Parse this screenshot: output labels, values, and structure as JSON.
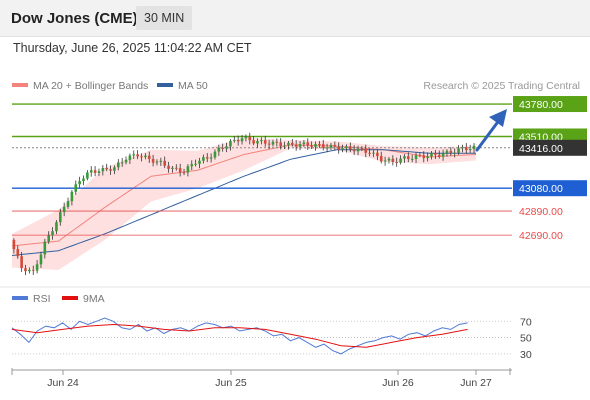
{
  "header": {
    "title": "Dow Jones (CME)",
    "timeframe": "30 MIN"
  },
  "timestamp": "Thursday, June 26, 2025 11:04:22 AM CET",
  "legend": {
    "items": [
      {
        "label": "MA 20 + Bollinger Bands",
        "color": "#f4837d"
      },
      {
        "label": "MA 50",
        "color": "#35609e"
      }
    ],
    "credit": "Research © 2025 Trading Central"
  },
  "rsi_legend": {
    "items": [
      {
        "label": "RSI",
        "color": "#4f7ad6"
      },
      {
        "label": "9MA",
        "color": "#e31010"
      }
    ]
  },
  "chart_data": [
    {
      "type": "candlestick",
      "levels": [
        {
          "label": "43780.00",
          "value": 43780.0,
          "color": "#5aa317",
          "kind": "resistance"
        },
        {
          "label": "43510.00",
          "value": 43510.0,
          "color": "#5aa317",
          "kind": "resistance"
        },
        {
          "label": "43416.00",
          "value": 43416.0,
          "color": "#333333",
          "kind": "last"
        },
        {
          "label": "43080.00",
          "value": 43080.0,
          "color": "#1e5fd3",
          "kind": "pivot"
        },
        {
          "label": "42890.00",
          "value": 42890.0,
          "color": "#e84c4c",
          "kind": "support"
        },
        {
          "label": "42690.00",
          "value": 42690.0,
          "color": "#e84c4c",
          "kind": "support"
        }
      ],
      "x_ticks": [
        "Jun 24",
        "Jun 25",
        "Jun 26",
        "Jun 27"
      ],
      "price_path": [
        [
          0,
          42650
        ],
        [
          3,
          42420
        ],
        [
          6,
          42380
        ],
        [
          9,
          42620
        ],
        [
          12,
          42800
        ],
        [
          15,
          42990
        ],
        [
          18,
          43150
        ],
        [
          21,
          43220
        ],
        [
          24,
          43230
        ],
        [
          27,
          43250
        ],
        [
          30,
          43330
        ],
        [
          33,
          43360
        ],
        [
          36,
          43320
        ],
        [
          39,
          43290
        ],
        [
          42,
          43240
        ],
        [
          45,
          43220
        ],
        [
          48,
          43300
        ],
        [
          51,
          43330
        ],
        [
          54,
          43400
        ],
        [
          57,
          43460
        ],
        [
          60,
          43500
        ],
        [
          63,
          43470
        ],
        [
          66,
          43460
        ],
        [
          69,
          43450
        ],
        [
          72,
          43440
        ],
        [
          75,
          43445
        ],
        [
          78,
          43440
        ],
        [
          81,
          43430
        ],
        [
          84,
          43420
        ],
        [
          87,
          43410
        ],
        [
          90,
          43400
        ],
        [
          93,
          43380
        ],
        [
          96,
          43320
        ],
        [
          99,
          43300
        ],
        [
          102,
          43330
        ],
        [
          105,
          43340
        ],
        [
          108,
          43350
        ],
        [
          111,
          43360
        ],
        [
          114,
          43380
        ],
        [
          117,
          43410
        ],
        [
          120,
          43416
        ]
      ],
      "ma_path": [
        [
          0,
          42600
        ],
        [
          12,
          42640
        ],
        [
          24,
          42920
        ],
        [
          36,
          43180
        ],
        [
          48,
          43230
        ],
        [
          60,
          43360
        ],
        [
          72,
          43440
        ],
        [
          84,
          43430
        ],
        [
          96,
          43400
        ],
        [
          108,
          43340
        ],
        [
          120,
          43360
        ]
      ],
      "bb_upper_path": [
        [
          0,
          42700
        ],
        [
          12,
          42900
        ],
        [
          24,
          43250
        ],
        [
          36,
          43400
        ],
        [
          48,
          43390
        ],
        [
          60,
          43500
        ],
        [
          72,
          43480
        ],
        [
          84,
          43470
        ],
        [
          96,
          43430
        ],
        [
          108,
          43420
        ],
        [
          120,
          43430
        ]
      ],
      "bb_lower_path": [
        [
          0,
          42420
        ],
        [
          12,
          42400
        ],
        [
          24,
          42650
        ],
        [
          36,
          42970
        ],
        [
          48,
          43080
        ],
        [
          60,
          43230
        ],
        [
          72,
          43410
        ],
        [
          84,
          43400
        ],
        [
          96,
          43300
        ],
        [
          108,
          43280
        ],
        [
          120,
          43310
        ]
      ],
      "ma50_path": [
        [
          0,
          42520
        ],
        [
          12,
          42560
        ],
        [
          24,
          42700
        ],
        [
          36,
          42860
        ],
        [
          48,
          43020
        ],
        [
          60,
          43180
        ],
        [
          72,
          43320
        ],
        [
          84,
          43400
        ],
        [
          96,
          43400
        ],
        [
          108,
          43370
        ],
        [
          120,
          43370
        ]
      ]
    },
    {
      "type": "line",
      "yticks": [
        70,
        50,
        30
      ],
      "rsi_path": [
        [
          0,
          62
        ],
        [
          2,
          54
        ],
        [
          4,
          44
        ],
        [
          6,
          58
        ],
        [
          8,
          64
        ],
        [
          10,
          62
        ],
        [
          12,
          68
        ],
        [
          14,
          60
        ],
        [
          16,
          70
        ],
        [
          18,
          66
        ],
        [
          20,
          70
        ],
        [
          22,
          74
        ],
        [
          24,
          70
        ],
        [
          26,
          62
        ],
        [
          28,
          60
        ],
        [
          30,
          66
        ],
        [
          32,
          58
        ],
        [
          34,
          62
        ],
        [
          36,
          55
        ],
        [
          38,
          60
        ],
        [
          40,
          62
        ],
        [
          42,
          58
        ],
        [
          44,
          64
        ],
        [
          46,
          68
        ],
        [
          48,
          66
        ],
        [
          50,
          62
        ],
        [
          52,
          64
        ],
        [
          54,
          58
        ],
        [
          56,
          60
        ],
        [
          58,
          62
        ],
        [
          60,
          58
        ],
        [
          62,
          52
        ],
        [
          64,
          54
        ],
        [
          66,
          46
        ],
        [
          68,
          50
        ],
        [
          70,
          44
        ],
        [
          72,
          38
        ],
        [
          74,
          42
        ],
        [
          76,
          34
        ],
        [
          78,
          30
        ],
        [
          80,
          36
        ],
        [
          82,
          40
        ],
        [
          84,
          44
        ],
        [
          86,
          46
        ],
        [
          88,
          50
        ],
        [
          90,
          52
        ],
        [
          92,
          48
        ],
        [
          94,
          54
        ],
        [
          96,
          56
        ],
        [
          98,
          52
        ],
        [
          100,
          58
        ],
        [
          102,
          62
        ],
        [
          104,
          60
        ],
        [
          106,
          66
        ],
        [
          108,
          68
        ]
      ],
      "ma_path": [
        [
          0,
          60
        ],
        [
          6,
          56
        ],
        [
          12,
          60
        ],
        [
          18,
          64
        ],
        [
          24,
          66
        ],
        [
          30,
          64
        ],
        [
          36,
          60
        ],
        [
          42,
          58
        ],
        [
          48,
          62
        ],
        [
          54,
          62
        ],
        [
          60,
          60
        ],
        [
          66,
          54
        ],
        [
          72,
          48
        ],
        [
          78,
          40
        ],
        [
          84,
          38
        ],
        [
          90,
          44
        ],
        [
          96,
          50
        ],
        [
          102,
          54
        ],
        [
          108,
          60
        ]
      ]
    }
  ]
}
